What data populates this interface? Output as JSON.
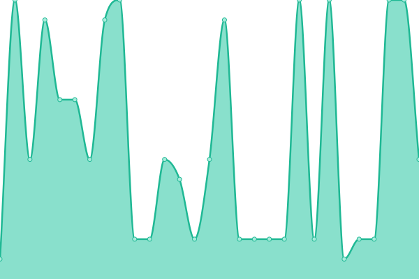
{
  "chart_data": {
    "type": "area",
    "title": "",
    "xlabel": "",
    "ylabel": "",
    "x": [
      0,
      1,
      2,
      3,
      4,
      5,
      6,
      7,
      8,
      9,
      10,
      11,
      12,
      13,
      14,
      15,
      16,
      17,
      18,
      19,
      20,
      21,
      22,
      23,
      24,
      25,
      26,
      27,
      28
    ],
    "series": [
      {
        "name": "",
        "values": [
          1,
          14,
          6,
          13,
          9,
          9,
          6,
          13,
          14,
          2,
          2,
          6,
          5,
          2,
          6,
          13,
          2,
          2,
          2,
          2,
          14,
          2,
          14,
          1,
          2,
          2,
          14,
          14,
          6
        ]
      }
    ],
    "ylim": [
      0,
      14
    ],
    "xlim": [
      0,
      28
    ],
    "grid": false,
    "legend": "none",
    "axes_visible": false,
    "curve": "smooth",
    "markers": true
  },
  "colors": {
    "line": "#1fb894",
    "fill": "#89e0cc",
    "marker_fill": "#a8ecdc",
    "marker_stroke": "#1fb894",
    "background": "#ffffff"
  }
}
